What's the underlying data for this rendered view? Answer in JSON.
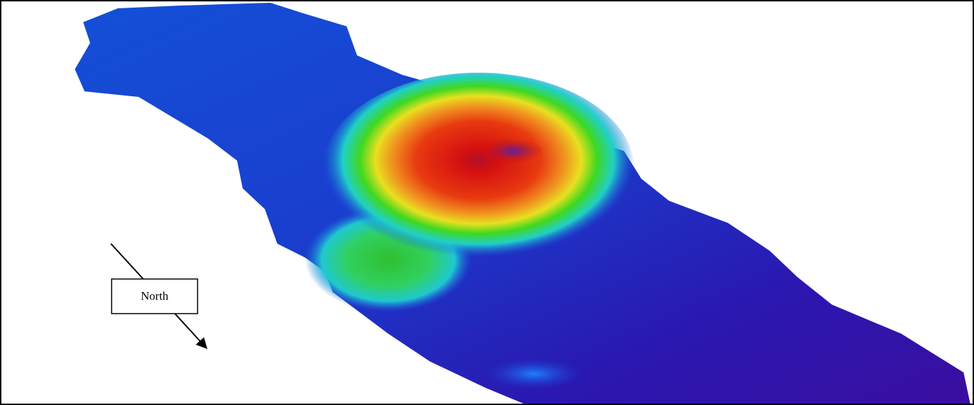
{
  "compass": {
    "label": "North"
  }
}
